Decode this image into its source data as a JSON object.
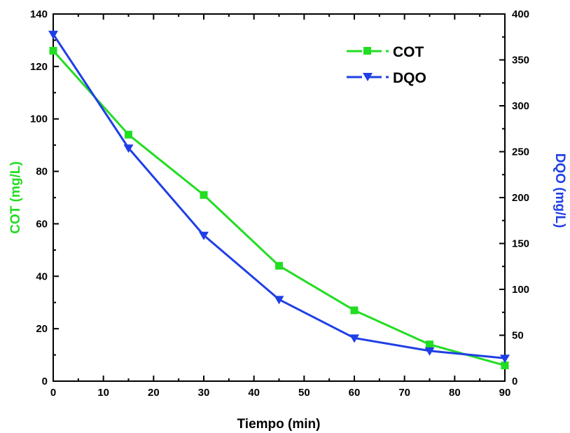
{
  "chart_data": {
    "type": "line",
    "xlabel": "Tiempo (min)",
    "ylabel_left": "COT (mg/L)",
    "ylabel_right": "DQO (mg/L)",
    "xlim": [
      0,
      90
    ],
    "ylim_left": [
      0,
      140
    ],
    "ylim_right": [
      0,
      400
    ],
    "x_ticks": [
      0,
      10,
      20,
      30,
      40,
      50,
      60,
      70,
      80,
      90
    ],
    "y_left_ticks": [
      0,
      20,
      40,
      60,
      80,
      100,
      120,
      140
    ],
    "y_right_ticks": [
      0,
      50,
      100,
      150,
      200,
      250,
      300,
      350,
      400
    ],
    "grid": false,
    "legend_position": "top-right",
    "series": [
      {
        "name": "COT",
        "axis": "left",
        "color": "#22dd22",
        "marker": "square",
        "x": [
          0,
          15,
          30,
          45,
          60,
          75,
          90
        ],
        "y": [
          126,
          94,
          71,
          44,
          27,
          14,
          6
        ]
      },
      {
        "name": "DQO",
        "axis": "right",
        "color": "#1f3fe6",
        "marker": "triangle-down",
        "x": [
          0,
          15,
          30,
          45,
          60,
          75,
          90
        ],
        "y": [
          378,
          254,
          159,
          89,
          47,
          33,
          25
        ]
      }
    ]
  },
  "colors": {
    "cot": "#22dd22",
    "dqo": "#1f3fe6",
    "axis": "#000000"
  }
}
